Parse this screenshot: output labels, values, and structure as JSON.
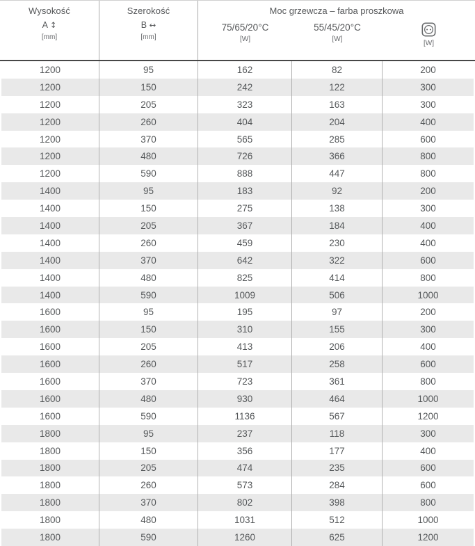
{
  "header": {
    "height": {
      "title": "Wysokość",
      "dim": "A",
      "arrow": "↕",
      "unit": "[mm]"
    },
    "width": {
      "title": "Szerokość",
      "dim": "B",
      "arrow": "↔",
      "unit": "[mm]"
    },
    "power": {
      "group_title": "Moc grzewcza – farba proszkowa",
      "subs": [
        {
          "label": "75/65/20°C",
          "unit": "[W]"
        },
        {
          "label": "55/45/20°C",
          "unit": "[W]"
        },
        {
          "label": "",
          "icon": "electric-socket-icon",
          "unit": "[W]"
        }
      ]
    }
  },
  "table": {
    "column_keys": [
      "height_mm",
      "width_mm",
      "power_75_65_20_W",
      "power_55_45_20_W",
      "power_electric_W"
    ],
    "rows": [
      [
        1200,
        95,
        162,
        82,
        200
      ],
      [
        1200,
        150,
        242,
        122,
        300
      ],
      [
        1200,
        205,
        323,
        163,
        300
      ],
      [
        1200,
        260,
        404,
        204,
        400
      ],
      [
        1200,
        370,
        565,
        285,
        600
      ],
      [
        1200,
        480,
        726,
        366,
        800
      ],
      [
        1200,
        590,
        888,
        447,
        800
      ],
      [
        1400,
        95,
        183,
        92,
        200
      ],
      [
        1400,
        150,
        275,
        138,
        300
      ],
      [
        1400,
        205,
        367,
        184,
        400
      ],
      [
        1400,
        260,
        459,
        230,
        400
      ],
      [
        1400,
        370,
        642,
        322,
        600
      ],
      [
        1400,
        480,
        825,
        414,
        800
      ],
      [
        1400,
        590,
        1009,
        506,
        1000
      ],
      [
        1600,
        95,
        195,
        97,
        200
      ],
      [
        1600,
        150,
        310,
        155,
        300
      ],
      [
        1600,
        205,
        413,
        206,
        400
      ],
      [
        1600,
        260,
        517,
        258,
        600
      ],
      [
        1600,
        370,
        723,
        361,
        800
      ],
      [
        1600,
        480,
        930,
        464,
        1000
      ],
      [
        1600,
        590,
        1136,
        567,
        1200
      ],
      [
        1800,
        95,
        237,
        118,
        300
      ],
      [
        1800,
        150,
        356,
        177,
        400
      ],
      [
        1800,
        205,
        474,
        235,
        600
      ],
      [
        1800,
        260,
        573,
        284,
        600
      ],
      [
        1800,
        370,
        802,
        398,
        800
      ],
      [
        1800,
        480,
        1031,
        512,
        1000
      ],
      [
        1800,
        590,
        1260,
        625,
        1200
      ]
    ]
  },
  "colors": {
    "stripe": "#e9e9e9",
    "grid_line": "#b0b0b0",
    "header_rule": "#474747",
    "text": "#55585a"
  }
}
